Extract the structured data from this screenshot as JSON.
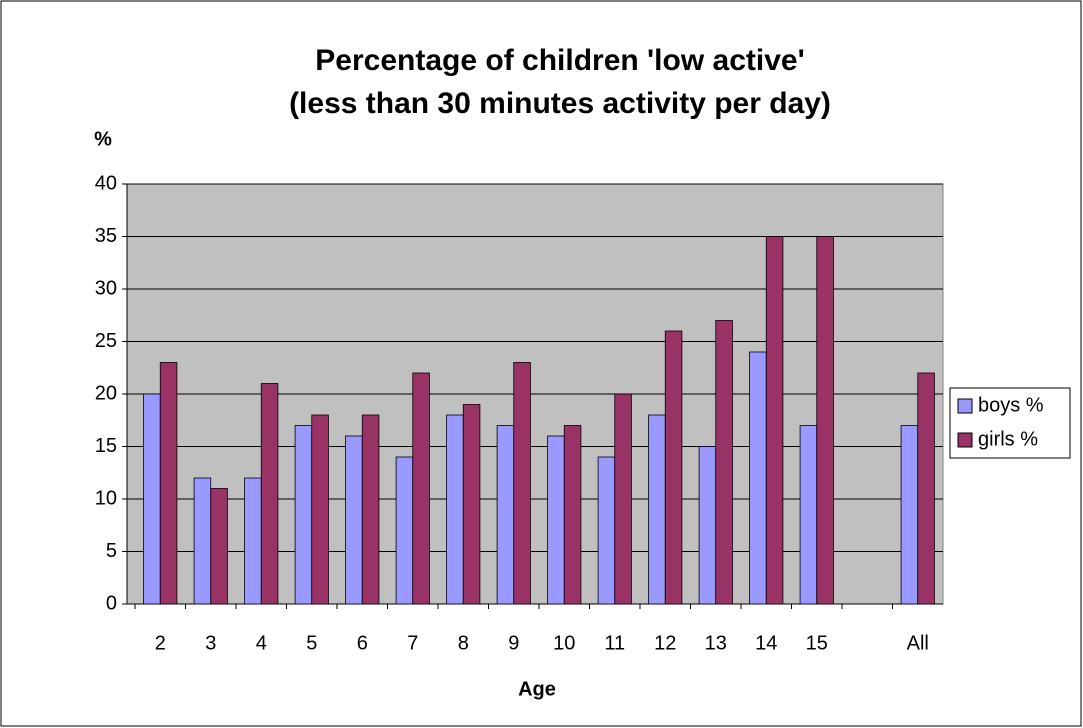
{
  "chart_data": {
    "type": "bar",
    "title": [
      "Percentage of children 'low active'",
      "(less than 30 minutes activity per day)"
    ],
    "y_label": "%",
    "x_label": "Age",
    "categories": [
      "2",
      "3",
      "4",
      "5",
      "6",
      "7",
      "8",
      "9",
      "10",
      "11",
      "12",
      "13",
      "14",
      "15",
      null,
      "All"
    ],
    "series": [
      {
        "name": "boys %",
        "color": "#9999ff",
        "values": [
          20,
          12,
          12,
          17,
          16,
          14,
          18,
          17,
          16,
          14,
          18,
          15,
          24,
          17,
          null,
          17
        ]
      },
      {
        "name": "girls %",
        "color": "#993366",
        "values": [
          23,
          11,
          21,
          18,
          18,
          22,
          19,
          23,
          17,
          20,
          26,
          27,
          35,
          35,
          null,
          22
        ]
      }
    ],
    "ylim": [
      0,
      40
    ],
    "yticks": [
      0,
      5,
      10,
      15,
      20,
      25,
      30,
      35,
      40
    ],
    "grid": true,
    "legend": "right"
  }
}
